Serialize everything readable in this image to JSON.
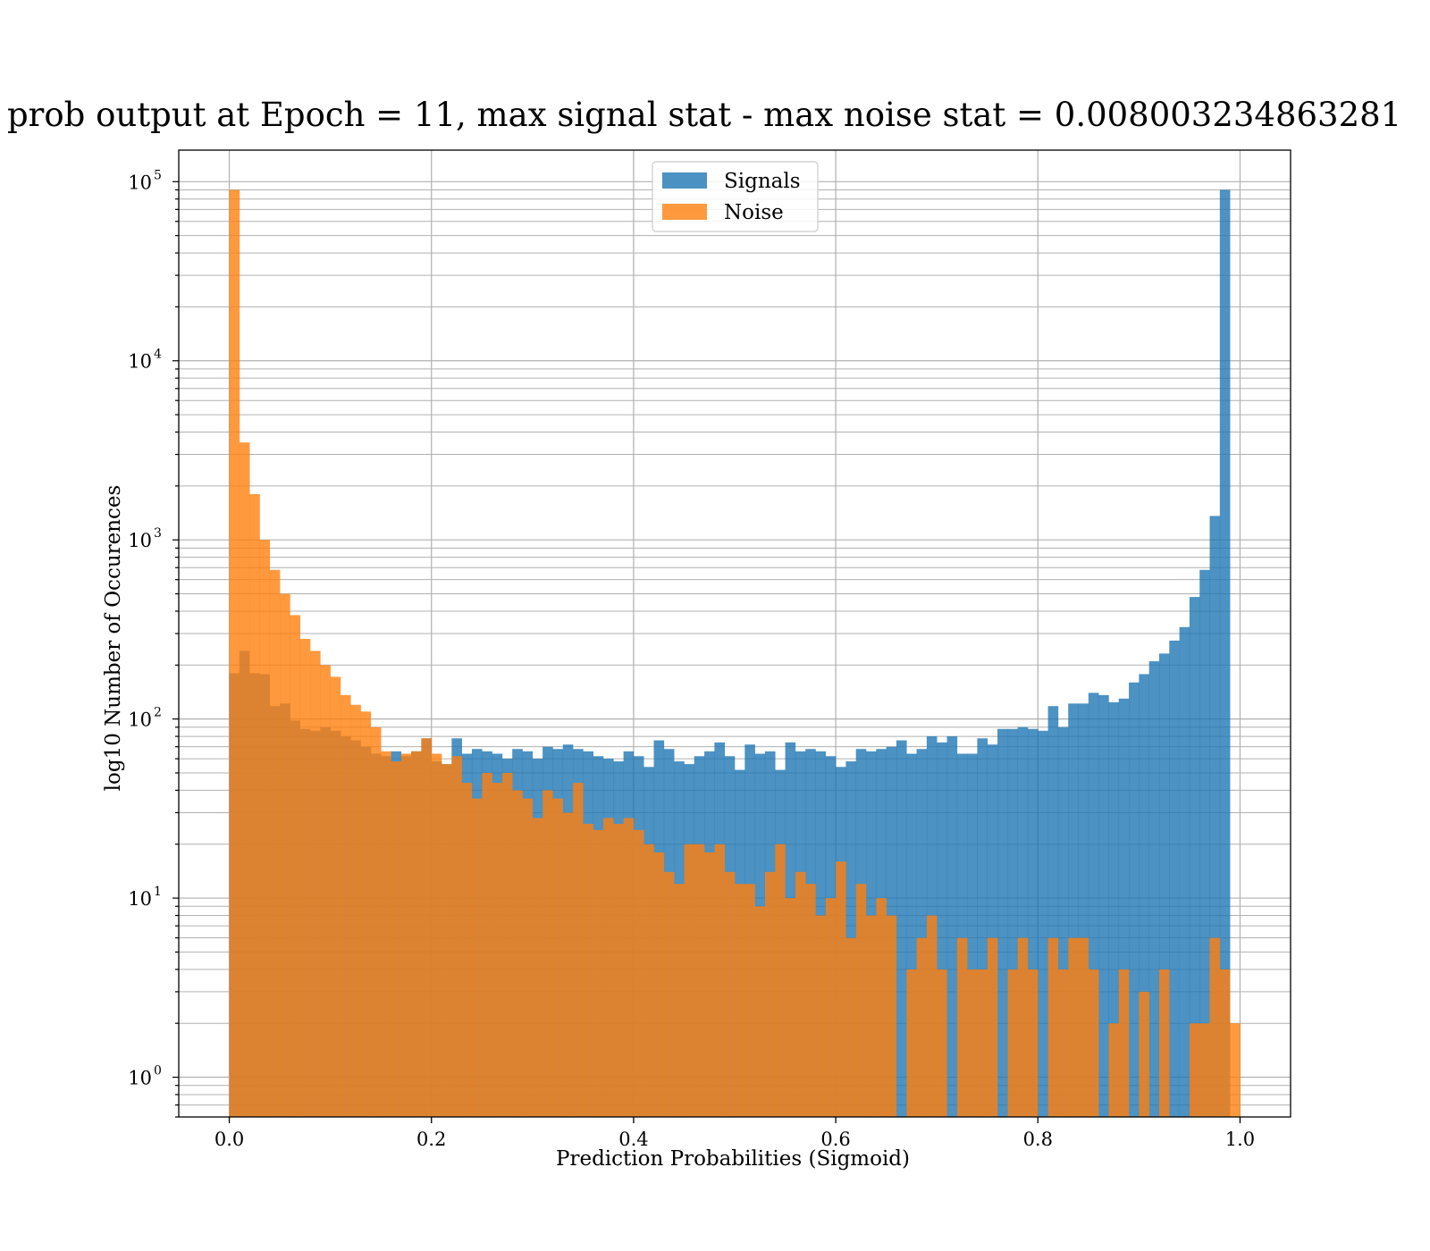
{
  "chart_data": {
    "type": "bar",
    "title": "prob output at Epoch = 11, max signal stat - max noise stat = 0.008003234863281",
    "xlabel": "Prediction Probabilities (Sigmoid)",
    "ylabel": "log10 Number of Occurences",
    "xlim": [
      -0.05,
      1.05
    ],
    "ylim": [
      0.6,
      150000
    ],
    "yscale": "log",
    "grid": true,
    "legend_position": "upper center",
    "bin_start": 0.0,
    "bin_width": 0.01,
    "x_ticks": [
      "0.0",
      "0.2",
      "0.4",
      "0.6",
      "0.8",
      "1.0"
    ],
    "x_tick_values": [
      0.0,
      0.2,
      0.4,
      0.6,
      0.8,
      1.0
    ],
    "y_ticks": [
      {
        "base": "10",
        "exp": "0",
        "value": 1
      },
      {
        "base": "10",
        "exp": "1",
        "value": 10
      },
      {
        "base": "10",
        "exp": "2",
        "value": 100
      },
      {
        "base": "10",
        "exp": "3",
        "value": 1000
      },
      {
        "base": "10",
        "exp": "4",
        "value": 10000
      },
      {
        "base": "10",
        "exp": "5",
        "value": 100000
      }
    ],
    "series": [
      {
        "name": "Signals",
        "color": "#1f77b4",
        "opacity": 0.8,
        "values": [
          180,
          240,
          180,
          178,
          118,
          122,
          98,
          88,
          86,
          90,
          86,
          80,
          76,
          70,
          64,
          62,
          66,
          62,
          66,
          78,
          58,
          56,
          78,
          64,
          68,
          66,
          64,
          60,
          68,
          66,
          60,
          70,
          68,
          72,
          68,
          66,
          62,
          60,
          58,
          66,
          62,
          54,
          76,
          68,
          58,
          56,
          62,
          66,
          74,
          62,
          52,
          72,
          64,
          66,
          52,
          74,
          66,
          68,
          66,
          62,
          54,
          58,
          68,
          66,
          68,
          70,
          76,
          64,
          68,
          80,
          74,
          80,
          64,
          64,
          78,
          72,
          88,
          88,
          90,
          88,
          86,
          118,
          90,
          122,
          122,
          140,
          136,
          124,
          130,
          160,
          178,
          210,
          232,
          274,
          326,
          480,
          680,
          1360,
          90000,
          0
        ]
      },
      {
        "name": "Noise",
        "color": "#ff7f0e",
        "opacity": 0.8,
        "values": [
          90000,
          3500,
          1800,
          1000,
          680,
          500,
          380,
          280,
          240,
          200,
          172,
          136,
          120,
          110,
          90,
          66,
          58,
          64,
          66,
          78,
          64,
          56,
          62,
          44,
          36,
          50,
          44,
          50,
          40,
          36,
          28,
          40,
          36,
          30,
          44,
          26,
          24,
          28,
          26,
          28,
          24,
          20,
          18,
          14,
          12,
          20,
          20,
          18,
          20,
          14,
          12,
          12,
          9,
          14,
          20,
          10,
          14,
          12,
          8,
          10,
          16,
          6,
          12,
          8,
          10,
          8,
          0,
          4,
          6,
          8,
          4,
          0,
          6,
          4,
          4,
          6,
          0,
          4,
          6,
          4,
          0,
          6,
          4,
          6,
          6,
          4,
          0,
          2,
          4,
          0,
          3,
          0,
          4,
          0,
          0,
          2,
          2,
          6,
          4,
          2
        ]
      }
    ]
  }
}
